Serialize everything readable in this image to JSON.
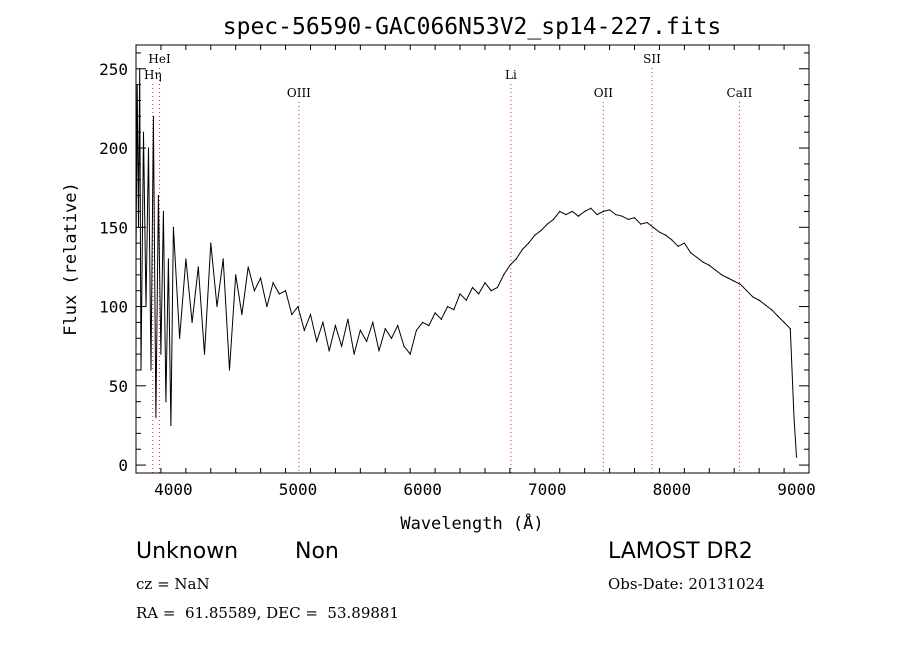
{
  "chart_data": {
    "type": "line",
    "title": "spec-56590-GAC066N53V2_sp14-227.fits",
    "xlabel": "Wavelength (Å)",
    "ylabel": "Flux (relative)",
    "xlim": [
      3700,
      9100
    ],
    "ylim": [
      -5,
      265
    ],
    "xticks": [
      4000,
      5000,
      6000,
      7000,
      8000,
      9000
    ],
    "yticks": [
      0,
      50,
      100,
      150,
      200,
      250
    ],
    "grid": false,
    "line_color": "#000000",
    "marker_color": "#cc3333",
    "lines": [
      {
        "label": "Hη",
        "wavelength": 3835,
        "row": 2
      },
      {
        "label": "HeI",
        "wavelength": 3889,
        "row": 1
      },
      {
        "label": "OIII",
        "wavelength": 5007,
        "row": 3
      },
      {
        "label": "Li",
        "wavelength": 6708,
        "row": 2
      },
      {
        "label": "OII",
        "wavelength": 7450,
        "row": 3
      },
      {
        "label": "SII",
        "wavelength": 7840,
        "row": 1
      },
      {
        "label": "CaII",
        "wavelength": 8542,
        "row": 3
      }
    ],
    "series": [
      {
        "x": [
          3700,
          3710,
          3720,
          3730,
          3740,
          3760,
          3780,
          3800,
          3820,
          3840,
          3860,
          3880,
          3900,
          3920,
          3940,
          3960,
          3980,
          4000,
          4050,
          4100,
          4150,
          4200,
          4250,
          4300,
          4350,
          4400,
          4450,
          4500,
          4550,
          4600,
          4650,
          4700,
          4750,
          4800,
          4850,
          4900,
          4950,
          5000,
          5050,
          5100,
          5150,
          5200,
          5250,
          5300,
          5350,
          5400,
          5450,
          5500,
          5550,
          5600,
          5650,
          5700,
          5750,
          5800,
          5850,
          5900,
          5950,
          6000,
          6050,
          6100,
          6150,
          6200,
          6250,
          6300,
          6350,
          6400,
          6450,
          6500,
          6550,
          6600,
          6650,
          6700,
          6750,
          6800,
          6850,
          6900,
          6950,
          7000,
          7050,
          7100,
          7150,
          7200,
          7250,
          7300,
          7350,
          7400,
          7450,
          7500,
          7550,
          7600,
          7650,
          7700,
          7750,
          7800,
          7850,
          7900,
          7950,
          8000,
          8050,
          8100,
          8150,
          8200,
          8250,
          8300,
          8350,
          8400,
          8450,
          8500,
          8550,
          8600,
          8650,
          8700,
          8750,
          8800,
          8850,
          8900,
          8950,
          8980,
          9000
        ],
        "y": [
          130,
          240,
          150,
          250,
          60,
          210,
          100,
          200,
          60,
          220,
          30,
          170,
          70,
          160,
          40,
          130,
          25,
          150,
          80,
          130,
          90,
          125,
          70,
          140,
          100,
          130,
          60,
          120,
          95,
          125,
          110,
          118,
          100,
          115,
          108,
          110,
          95,
          100,
          85,
          95,
          78,
          90,
          72,
          88,
          75,
          92,
          70,
          85,
          78,
          90,
          72,
          86,
          80,
          88,
          75,
          70,
          85,
          90,
          88,
          96,
          92,
          100,
          98,
          108,
          104,
          112,
          108,
          115,
          110,
          112,
          120,
          126,
          130,
          136,
          140,
          145,
          148,
          152,
          155,
          160,
          158,
          160,
          157,
          160,
          162,
          158,
          160,
          161,
          158,
          157,
          155,
          156,
          152,
          153,
          150,
          147,
          145,
          142,
          138,
          140,
          134,
          131,
          128,
          126,
          123,
          120,
          118,
          116,
          114,
          110,
          106,
          104,
          101,
          98,
          94,
          90,
          86,
          30,
          5
        ]
      }
    ]
  },
  "info": {
    "class": "Unknown",
    "subclass": "Non",
    "survey": "LAMOST DR2",
    "cz": "cz = NaN",
    "obs_date": "Obs-Date: 20131024",
    "radec": "RA =  61.85589, DEC =  53.89881"
  }
}
